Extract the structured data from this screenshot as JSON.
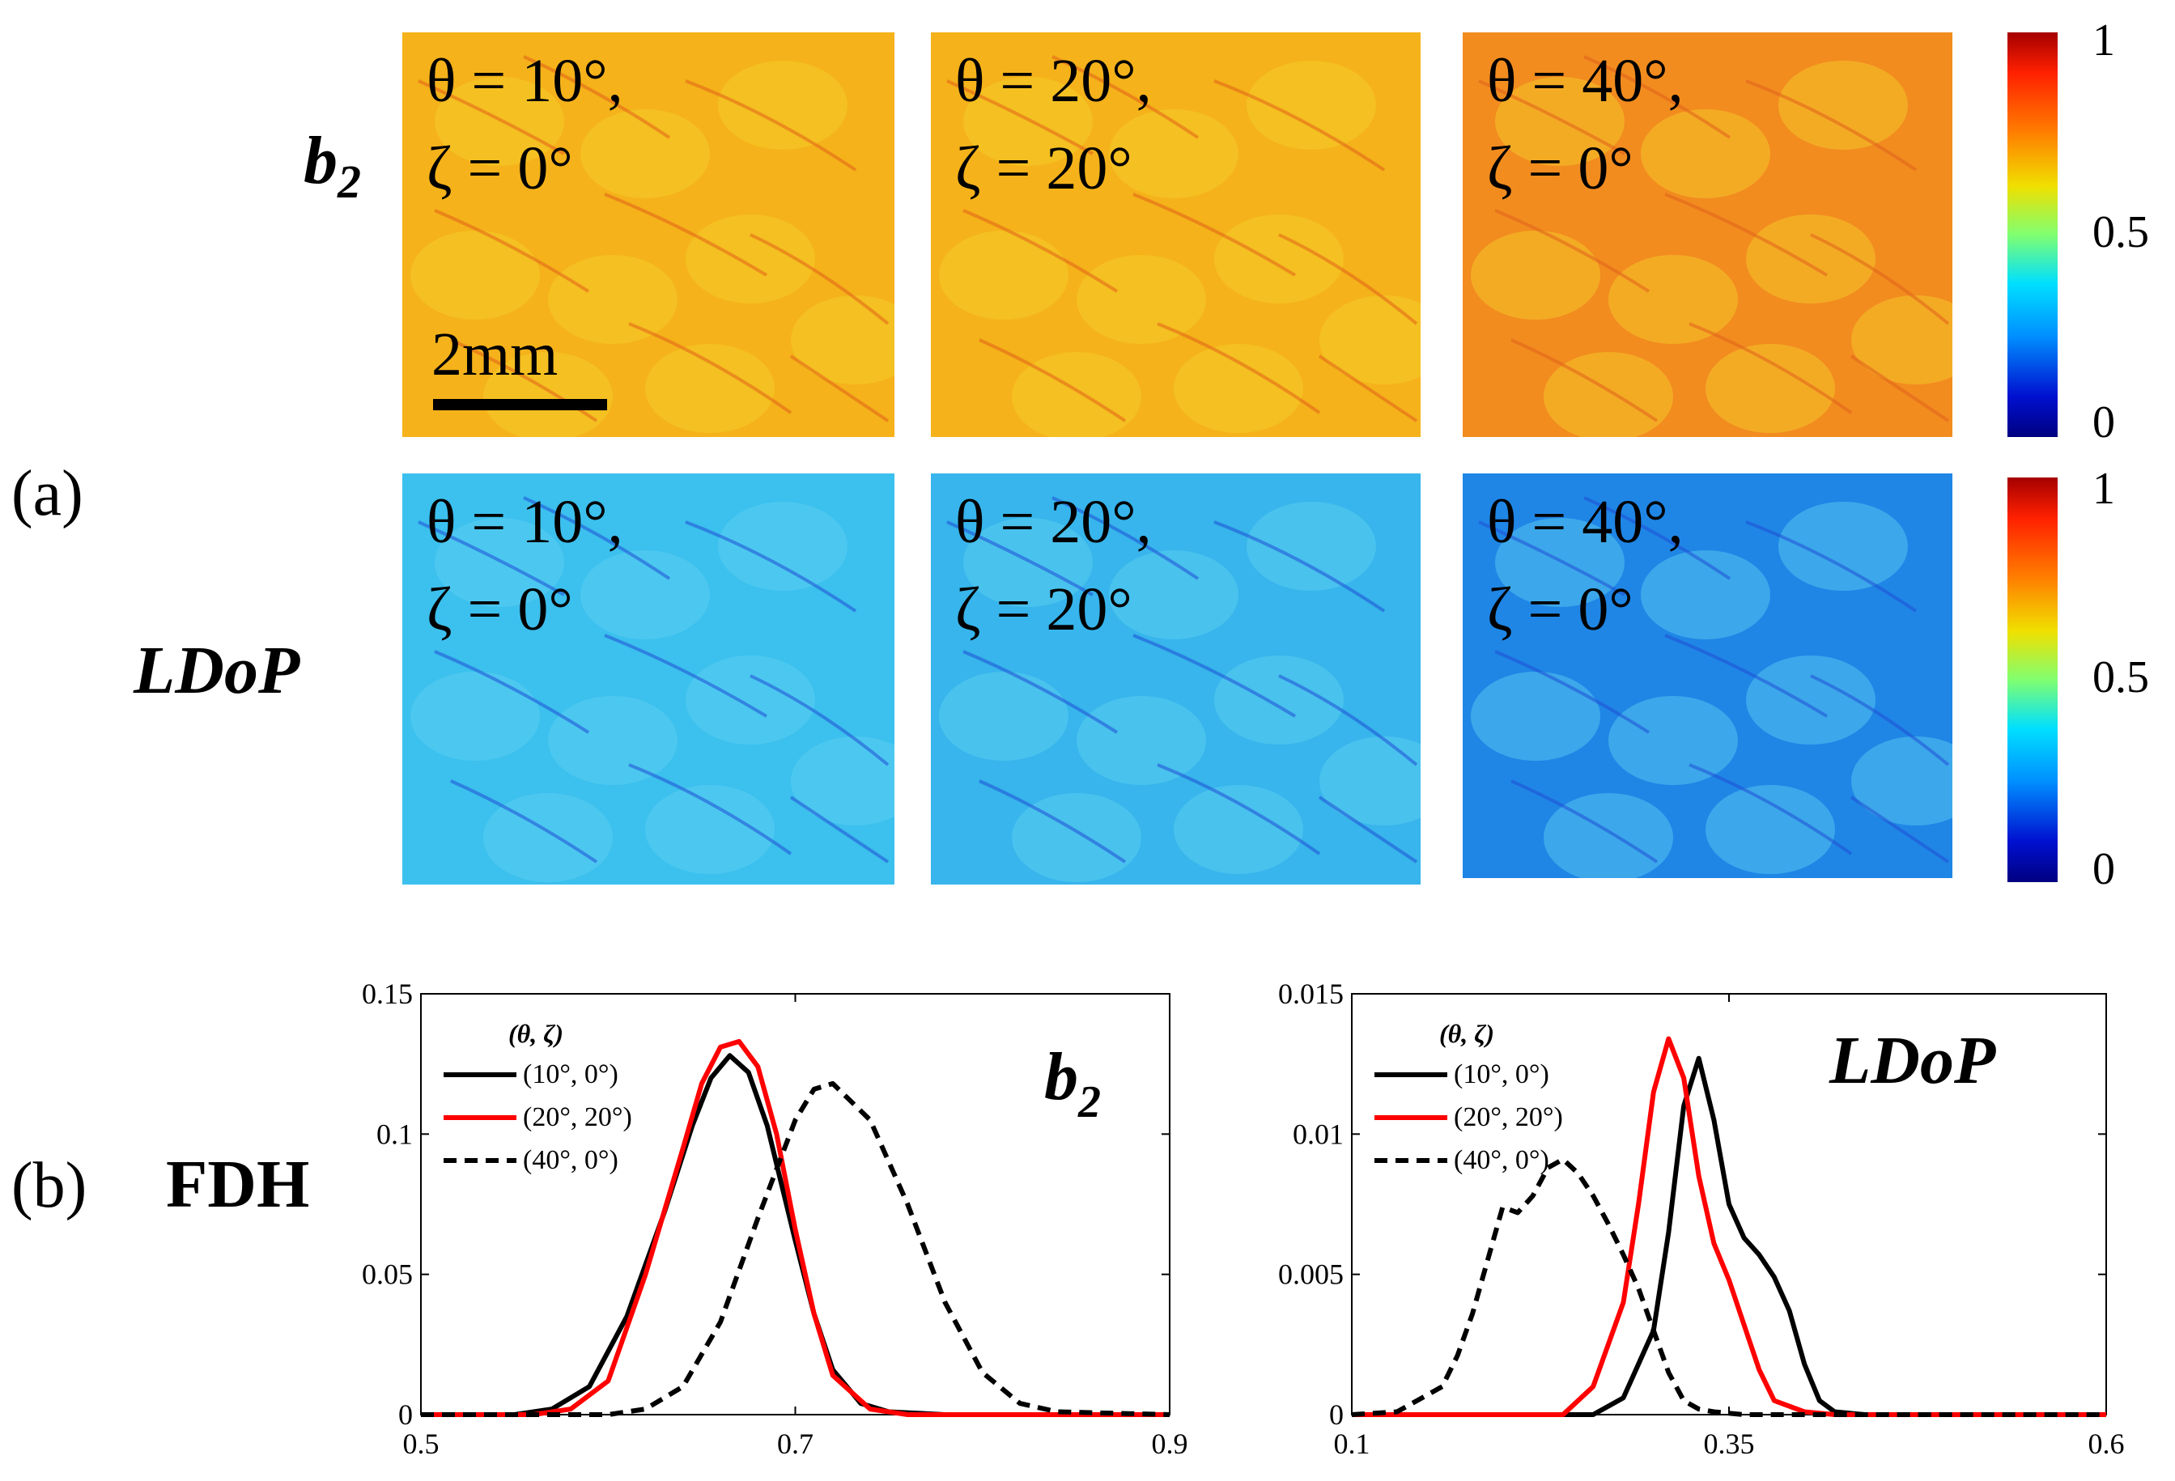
{
  "panel_labels": {
    "a": "(a)",
    "b": "(b)"
  },
  "row_labels": {
    "b2_base": "b",
    "b2_sub": "2",
    "ldop": "LDoP"
  },
  "fdh_label": "FDH",
  "tiles": [
    {
      "line1": "θ = 10°,",
      "line2": "ζ = 0°"
    },
    {
      "line1": "θ = 20°,",
      "line2": "ζ = 20°"
    },
    {
      "line1": "θ = 40°,",
      "line2": "ζ = 0°"
    }
  ],
  "map_colors": {
    "b2": [
      "#f5b21a",
      "#f5b21a",
      "#f28c1f"
    ],
    "ldop": [
      "#3cc0ee",
      "#37b5ec",
      "#1f86e6"
    ],
    "b2_vein": "#e0601a",
    "ldop_vein": "#1f4fd6"
  },
  "scale_bar": {
    "label": "2mm"
  },
  "colorbar": {
    "ticks": [
      "1",
      "0.5",
      "0"
    ],
    "range": [
      0,
      1
    ]
  },
  "chart_data": [
    {
      "type": "line",
      "title_base": "b",
      "title_sub": "2",
      "legend_title": "(θ, ζ)",
      "legend_position": "top-left",
      "xlim": [
        0.5,
        0.9
      ],
      "ylim": [
        0,
        0.15
      ],
      "xticks": [
        0.5,
        0.7,
        0.9
      ],
      "xtick_labels": [
        "0.5",
        "0.7",
        "0.9"
      ],
      "yticks": [
        0,
        0.05,
        0.1,
        0.15
      ],
      "ytick_labels": [
        "0",
        "0.05",
        "0.1",
        "0.15"
      ],
      "series": [
        {
          "name": "(10°, 0°)",
          "color": "#000000",
          "style": "solid",
          "x": [
            0.5,
            0.55,
            0.57,
            0.59,
            0.61,
            0.63,
            0.645,
            0.655,
            0.665,
            0.675,
            0.685,
            0.7,
            0.71,
            0.72,
            0.735,
            0.75,
            0.78,
            0.9
          ],
          "y": [
            0,
            0,
            0.002,
            0.01,
            0.035,
            0.072,
            0.103,
            0.12,
            0.128,
            0.122,
            0.103,
            0.062,
            0.036,
            0.016,
            0.004,
            0.001,
            0,
            0
          ]
        },
        {
          "name": "(20°, 20°)",
          "color": "#ff0000",
          "style": "solid",
          "x": [
            0.5,
            0.56,
            0.58,
            0.6,
            0.62,
            0.64,
            0.65,
            0.66,
            0.67,
            0.68,
            0.69,
            0.7,
            0.71,
            0.72,
            0.74,
            0.76,
            0.9
          ],
          "y": [
            0,
            0,
            0.002,
            0.012,
            0.05,
            0.095,
            0.118,
            0.131,
            0.133,
            0.124,
            0.1,
            0.066,
            0.036,
            0.014,
            0.002,
            0,
            0
          ]
        },
        {
          "name": "(40°, 0°)",
          "color": "#000000",
          "style": "dashed",
          "x": [
            0.5,
            0.6,
            0.62,
            0.64,
            0.66,
            0.68,
            0.7,
            0.71,
            0.72,
            0.74,
            0.76,
            0.78,
            0.8,
            0.82,
            0.84,
            0.9
          ],
          "y": [
            0,
            0,
            0.002,
            0.01,
            0.033,
            0.07,
            0.105,
            0.116,
            0.118,
            0.105,
            0.075,
            0.04,
            0.015,
            0.004,
            0.001,
            0
          ]
        }
      ]
    },
    {
      "type": "line",
      "title": "LDoP",
      "legend_title": "(θ, ζ)",
      "legend_position": "top-left",
      "xlim": [
        0.1,
        0.6
      ],
      "ylim": [
        0,
        0.015
      ],
      "xticks": [
        0.1,
        0.35,
        0.6
      ],
      "xtick_labels": [
        "0.1",
        "0.35",
        "0.6"
      ],
      "yticks": [
        0,
        0.005,
        0.01,
        0.015
      ],
      "ytick_labels": [
        "0",
        "0.005",
        "0.01",
        "0.015"
      ],
      "series": [
        {
          "name": "(10°, 0°)",
          "color": "#000000",
          "style": "solid",
          "x": [
            0.1,
            0.26,
            0.28,
            0.3,
            0.31,
            0.32,
            0.33,
            0.34,
            0.35,
            0.36,
            0.37,
            0.38,
            0.39,
            0.4,
            0.41,
            0.42,
            0.44,
            0.6
          ],
          "y": [
            0,
            0,
            0.0006,
            0.003,
            0.0065,
            0.011,
            0.0127,
            0.0105,
            0.0075,
            0.0063,
            0.0057,
            0.0049,
            0.0037,
            0.0018,
            0.0005,
            0.0001,
            0,
            0
          ]
        },
        {
          "name": "(20°, 20°)",
          "color": "#ff0000",
          "style": "solid",
          "x": [
            0.1,
            0.24,
            0.26,
            0.28,
            0.29,
            0.3,
            0.31,
            0.32,
            0.33,
            0.34,
            0.35,
            0.36,
            0.37,
            0.38,
            0.4,
            0.42,
            0.6
          ],
          "y": [
            0,
            0,
            0.001,
            0.004,
            0.0075,
            0.0115,
            0.0134,
            0.012,
            0.0085,
            0.0061,
            0.0048,
            0.0032,
            0.0016,
            0.0005,
            0.0001,
            0,
            0
          ]
        },
        {
          "name": "(40°, 0°)",
          "color": "#000000",
          "style": "dashed",
          "x": [
            0.1,
            0.13,
            0.16,
            0.17,
            0.18,
            0.19,
            0.2,
            0.21,
            0.22,
            0.23,
            0.24,
            0.25,
            0.26,
            0.27,
            0.28,
            0.29,
            0.3,
            0.31,
            0.32,
            0.33,
            0.34,
            0.36,
            0.6
          ],
          "y": [
            0,
            0.0001,
            0.001,
            0.0021,
            0.0036,
            0.0055,
            0.0074,
            0.0072,
            0.0078,
            0.0088,
            0.0091,
            0.0086,
            0.0078,
            0.0068,
            0.0057,
            0.0045,
            0.003,
            0.0015,
            0.0005,
            0.0002,
            0.0001,
            0,
            0
          ]
        }
      ]
    }
  ]
}
